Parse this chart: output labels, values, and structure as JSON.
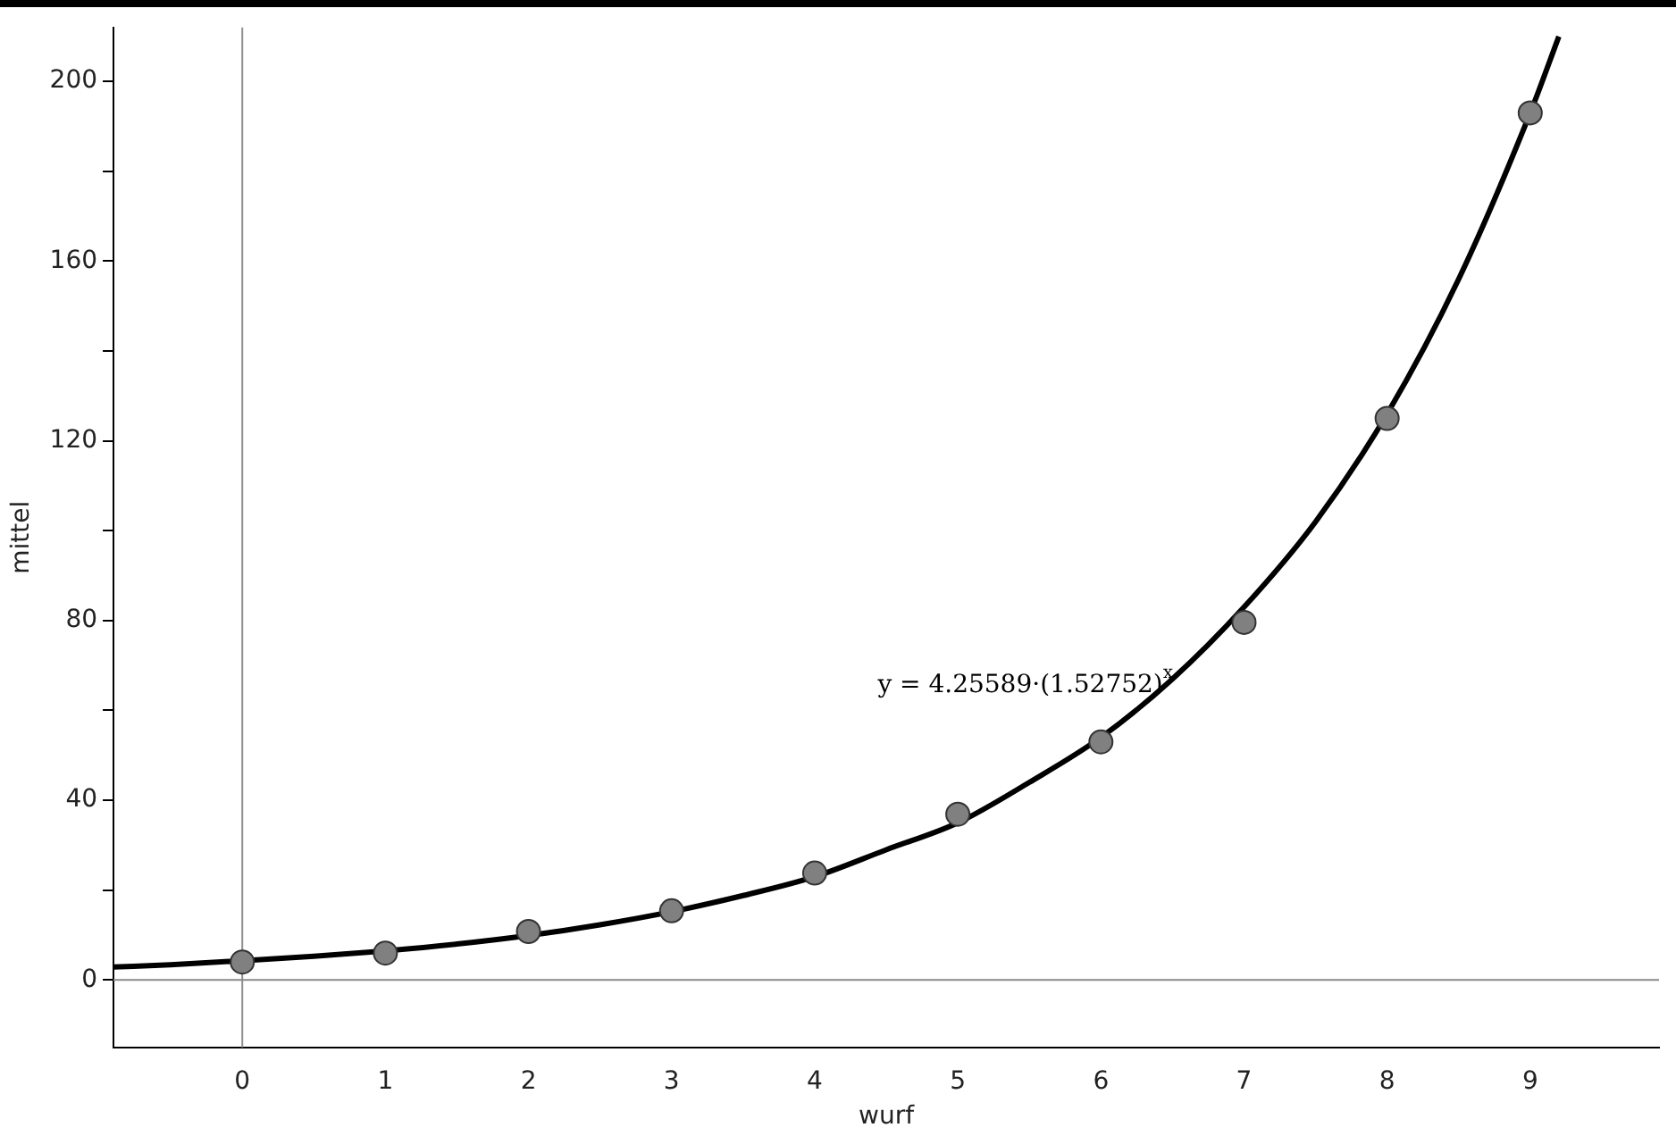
{
  "chart_data": {
    "type": "scatter",
    "xlabel": "wurf",
    "ylabel": "mittel",
    "xlim": [
      -0.9,
      9.9
    ],
    "xticks": [
      0,
      1,
      2,
      3,
      4,
      5,
      6,
      7,
      8,
      9
    ],
    "ylim": [
      -15,
      212
    ],
    "yticks": [
      0,
      {
        "value": 20,
        "label": null
      },
      40,
      {
        "value": 60,
        "label": null
      },
      80,
      {
        "value": 100,
        "label": null
      },
      120,
      {
        "value": 140,
        "label": null
      },
      160,
      {
        "value": 180,
        "label": null
      },
      200
    ],
    "grid": false,
    "legend": false,
    "marker": "circle",
    "ref_lines": [
      {
        "axis": "x",
        "value": 0,
        "color": "#909090"
      },
      {
        "axis": "y",
        "value": 0,
        "color": "#8a8a8a"
      }
    ],
    "annotations": [
      "y = 4.25589·(1.52752)$^{x}$"
    ],
    "series": [
      {
        "color": "#808080",
        "x": [
          0,
          1,
          2,
          3,
          4,
          5,
          6,
          7,
          8,
          9
        ],
        "values": [
          4,
          6,
          10.8,
          15.4,
          23.8,
          36.9,
          53,
          79.6,
          125,
          193
        ]
      },
      {
        "type": "line",
        "color": "#000000",
        "marker": "none",
        "line_style": "solid",
        "x": [
          -0.9,
          -0.5,
          0,
          0.5,
          1,
          1.5,
          2,
          2.5,
          3,
          3.5,
          4,
          4.5,
          5,
          5.5,
          6,
          6.5,
          7,
          7.5,
          8,
          8.5,
          9,
          9.2
        ],
        "values": [
          2.9,
          3.4,
          4.3,
          5.3,
          6.5,
          8,
          9.9,
          12.3,
          15.2,
          18.8,
          23,
          29,
          35,
          44,
          54,
          67,
          83,
          102,
          126,
          156,
          193,
          210
        ]
      }
    ]
  }
}
